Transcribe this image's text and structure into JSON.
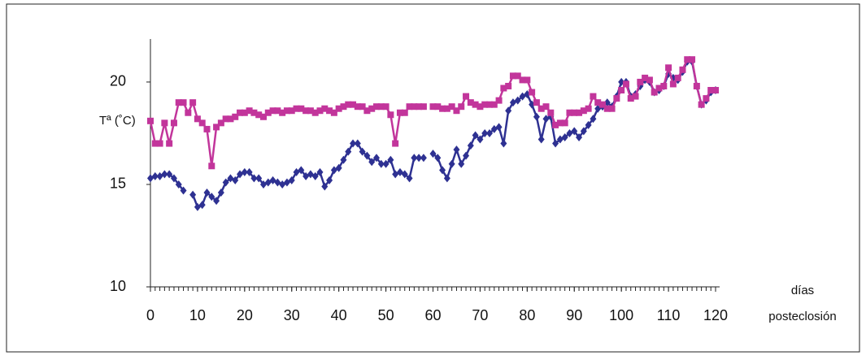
{
  "chart_data": {
    "type": "line",
    "y_label": "Tª (˚C)",
    "x_label": [
      "días",
      "posteclosión"
    ],
    "xlim": [
      0,
      120
    ],
    "ylim": [
      10,
      22.1
    ],
    "xticks": [
      0,
      10,
      20,
      30,
      40,
      50,
      60,
      70,
      80,
      90,
      100,
      110,
      120
    ],
    "xminor_ticks": [
      0,
      1,
      2,
      3,
      4,
      5,
      6,
      7,
      8,
      9,
      10,
      11,
      12,
      13,
      14,
      15,
      16,
      17,
      18,
      19,
      20,
      21,
      22,
      23,
      24,
      25,
      26,
      27,
      28,
      29,
      30,
      31,
      32,
      33,
      34,
      35,
      36,
      37,
      38,
      39,
      40,
      41,
      42,
      43,
      44,
      45,
      46,
      47,
      48,
      49,
      50,
      51,
      52,
      53,
      54,
      55,
      56,
      57,
      58,
      59,
      60,
      61,
      62,
      63,
      64,
      65,
      66,
      67,
      68,
      69,
      70,
      71,
      72,
      73,
      74,
      75,
      76,
      77,
      78,
      79,
      80,
      81,
      82,
      83,
      84,
      85,
      86,
      87,
      88,
      89,
      90,
      91,
      92,
      93,
      94,
      95,
      96,
      97,
      98,
      99,
      100,
      101,
      102,
      103,
      104,
      105,
      106,
      107,
      108,
      109,
      110,
      111,
      112,
      113,
      114,
      115,
      116,
      117,
      118,
      119,
      120
    ],
    "yticks": [
      10,
      15,
      20
    ],
    "grid": false,
    "x": [
      0,
      1,
      2,
      3,
      4,
      5,
      6,
      7,
      8,
      9,
      10,
      11,
      12,
      13,
      14,
      15,
      16,
      17,
      18,
      19,
      20,
      21,
      22,
      23,
      24,
      25,
      26,
      27,
      28,
      29,
      30,
      31,
      32,
      33,
      34,
      35,
      36,
      37,
      38,
      39,
      40,
      41,
      42,
      43,
      44,
      45,
      46,
      47,
      48,
      49,
      50,
      51,
      52,
      53,
      54,
      55,
      56,
      57,
      58,
      59,
      60,
      61,
      62,
      63,
      64,
      65,
      66,
      67,
      68,
      69,
      70,
      71,
      72,
      73,
      74,
      75,
      76,
      77,
      78,
      79,
      80,
      81,
      82,
      83,
      84,
      85,
      86,
      87,
      88,
      89,
      90,
      91,
      92,
      93,
      94,
      95,
      96,
      97,
      98,
      99,
      100,
      101,
      102,
      103,
      104,
      105,
      106,
      107,
      108,
      109,
      110,
      111,
      112,
      113,
      114,
      115,
      116,
      117,
      118,
      119,
      120
    ],
    "series": [
      {
        "color": "#2e3192",
        "marker": "diamond",
        "values": [
          15.3,
          15.4,
          15.4,
          15.5,
          15.5,
          15.3,
          15.0,
          14.7,
          null,
          14.5,
          13.9,
          14.0,
          14.6,
          14.4,
          14.2,
          14.6,
          15.1,
          15.3,
          15.2,
          15.5,
          15.6,
          15.6,
          15.3,
          15.3,
          15.0,
          15.1,
          15.2,
          15.1,
          15.0,
          15.1,
          15.2,
          15.6,
          15.7,
          15.4,
          15.5,
          15.4,
          15.6,
          14.9,
          15.2,
          15.7,
          15.8,
          16.2,
          16.6,
          17.0,
          17.0,
          16.6,
          16.4,
          16.1,
          16.3,
          16.0,
          16.0,
          16.2,
          15.5,
          15.6,
          15.5,
          15.3,
          16.3,
          16.3,
          16.3,
          null,
          16.5,
          16.3,
          15.7,
          15.3,
          16.0,
          16.7,
          16.0,
          16.4,
          16.9,
          17.4,
          17.2,
          17.5,
          17.5,
          17.7,
          17.8,
          17.0,
          18.6,
          19.0,
          19.1,
          19.3,
          19.4,
          18.9,
          18.3,
          17.2,
          18.2,
          18.3,
          17.0,
          17.2,
          17.3,
          17.5,
          17.6,
          17.3,
          17.6,
          17.9,
          18.2,
          18.7,
          18.8,
          19.0,
          18.8,
          19.3,
          20.0,
          20.0,
          19.3,
          19.4,
          19.8,
          20.1,
          20.0,
          19.5,
          19.6,
          19.8,
          20.4,
          20.2,
          20.1,
          20.5,
          21.0,
          21.0,
          19.8,
          18.9,
          19.1,
          19.5,
          19.6
        ]
      },
      {
        "color": "#c2359b",
        "marker": "square",
        "values": [
          18.1,
          17.0,
          17.0,
          18.0,
          17.0,
          18.0,
          19.0,
          19.0,
          18.5,
          19.0,
          18.2,
          18.0,
          17.7,
          15.9,
          17.8,
          18.0,
          18.2,
          18.2,
          18.3,
          18.5,
          18.5,
          18.6,
          18.5,
          18.4,
          18.3,
          18.5,
          18.6,
          18.6,
          18.5,
          18.6,
          18.6,
          18.7,
          18.7,
          18.6,
          18.6,
          18.5,
          18.6,
          18.7,
          18.6,
          18.5,
          18.7,
          18.8,
          18.9,
          18.9,
          18.8,
          18.8,
          18.6,
          18.7,
          18.8,
          18.8,
          18.8,
          18.4,
          17.0,
          18.5,
          18.5,
          18.8,
          18.8,
          18.8,
          18.8,
          null,
          18.8,
          18.8,
          18.7,
          18.7,
          18.8,
          18.6,
          18.8,
          19.3,
          19.0,
          18.9,
          18.8,
          18.9,
          18.9,
          18.9,
          19.1,
          19.7,
          19.8,
          20.3,
          20.3,
          20.1,
          20.1,
          19.5,
          19.0,
          18.7,
          18.8,
          18.5,
          17.9,
          18.0,
          18.0,
          18.5,
          18.5,
          18.5,
          18.6,
          18.7,
          19.3,
          19.0,
          18.9,
          18.7,
          18.7,
          19.2,
          19.6,
          19.9,
          19.2,
          19.3,
          20.0,
          20.2,
          20.1,
          19.5,
          19.7,
          19.8,
          20.7,
          19.9,
          20.2,
          20.6,
          21.1,
          21.1,
          19.8,
          18.9,
          19.2,
          19.6,
          19.6
        ]
      }
    ]
  }
}
